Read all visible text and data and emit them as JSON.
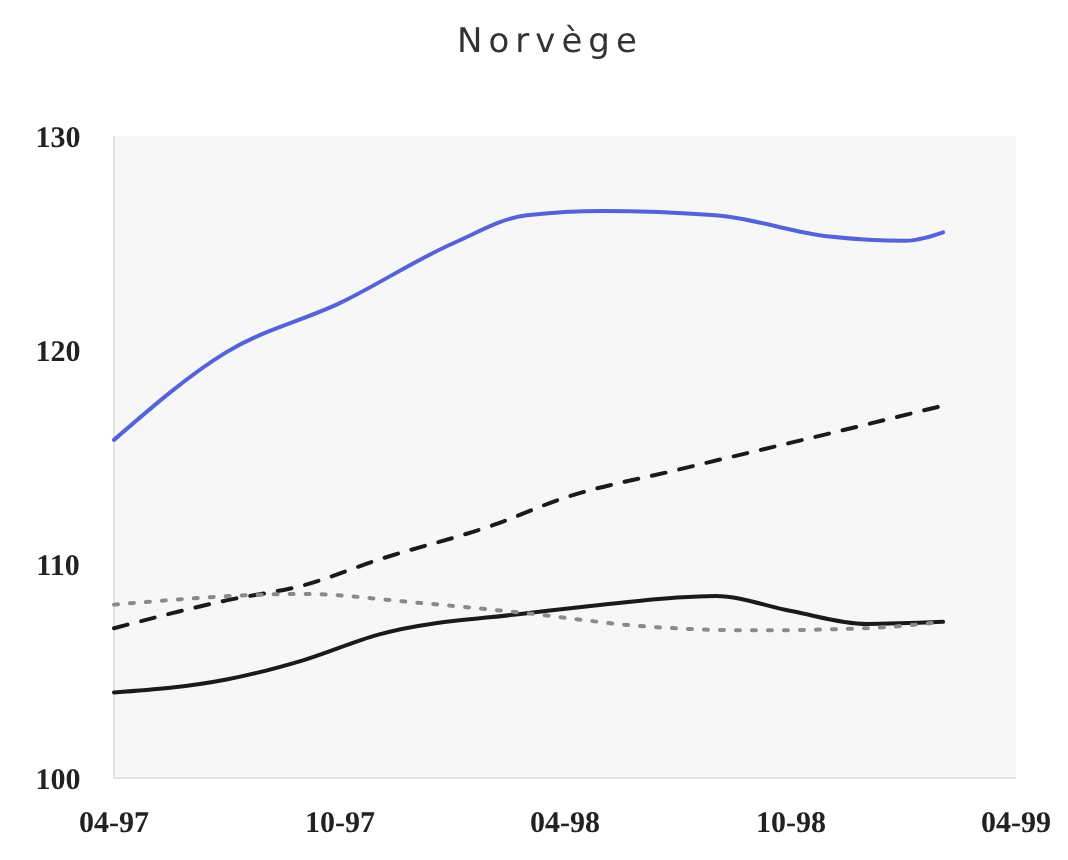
{
  "chart_data": {
    "type": "line",
    "title": "Norvège",
    "xlim": [
      "1997-04",
      "1999-04"
    ],
    "xticks": [
      {
        "value": "1997-04",
        "label": "04-97"
      },
      {
        "value": "1997-10",
        "label": "10-97"
      },
      {
        "value": "1998-04",
        "label": "04-98"
      },
      {
        "value": "1998-10",
        "label": "10-98"
      },
      {
        "value": "1999-04",
        "label": "04-99"
      }
    ],
    "ylim": [
      100,
      130
    ],
    "yticks": [
      100,
      110,
      120,
      130
    ],
    "grid": false,
    "marker": "none",
    "series": [
      {
        "color": "#5563d8",
        "line_style": "solid",
        "x": [
          "1997-04",
          "1997-07",
          "1997-10",
          "1998-01",
          "1998-03",
          "1998-05",
          "1998-08",
          "1998-11",
          "1999-01",
          "1999-02"
        ],
        "values": [
          115.8,
          119.9,
          122.2,
          125.0,
          126.3,
          126.5,
          126.3,
          125.3,
          125.1,
          125.5
        ]
      },
      {
        "color": "#1a1a1a",
        "line_style": "solid",
        "x": [
          "1997-04",
          "1997-07",
          "1997-09",
          "1997-11",
          "1998-03",
          "1998-05",
          "1998-08",
          "1998-10",
          "1998-12",
          "1999-02"
        ],
        "values": [
          104.0,
          104.6,
          105.5,
          106.7,
          107.7,
          108.1,
          108.5,
          107.8,
          107.2,
          107.3
        ]
      },
      {
        "color": "#1a1a1a",
        "line_style": "dashed",
        "x": [
          "1997-04",
          "1997-07",
          "1997-09",
          "1997-11",
          "1998-02",
          "1998-04",
          "1998-07",
          "1998-11",
          "1999-02"
        ],
        "values": [
          107.0,
          108.3,
          109.0,
          110.2,
          111.8,
          113.1,
          114.4,
          116.1,
          117.4
        ]
      },
      {
        "color": "#8a8a8a",
        "line_style": "dotted",
        "x": [
          "1997-04",
          "1997-09",
          "1997-12",
          "1998-03",
          "1998-06",
          "1998-09",
          "1998-12",
          "1999-02"
        ],
        "values": [
          108.1,
          108.6,
          108.2,
          107.7,
          107.1,
          106.9,
          107.0,
          107.3
        ]
      }
    ]
  }
}
